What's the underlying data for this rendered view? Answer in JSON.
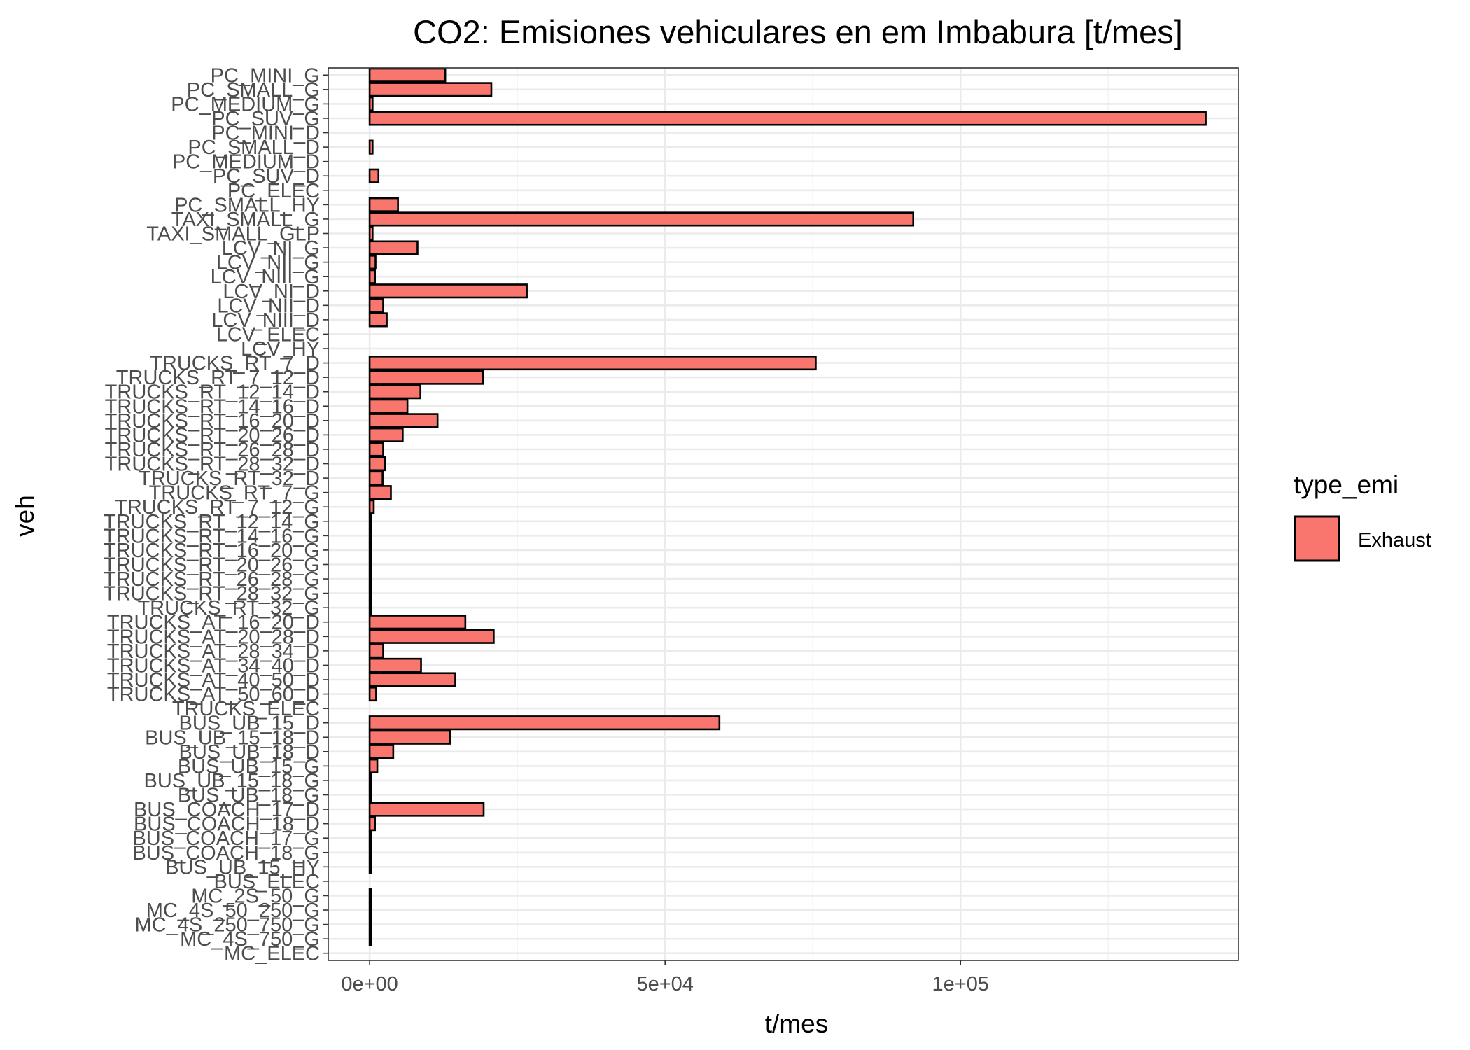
{
  "colors": {
    "bar_fill": "#F8766D",
    "bar_stroke": "#000000",
    "grid_major": "#EBEBEB",
    "grid_minor": "#F3F3F3",
    "panel_border": "#333333",
    "tick_text": "#4D4D4D"
  },
  "legend": {
    "title": "type_emi",
    "items": [
      {
        "label": "Exhaust",
        "color": "#F8766D"
      }
    ]
  },
  "chart_data": {
    "type": "bar",
    "orientation": "horizontal",
    "title": "CO2: Emisiones vehiculares en  em Imbabura [t/mes]",
    "xlabel": "t/mes",
    "ylabel": "veh",
    "xlim": [
      -7000,
      147000
    ],
    "xticks": [
      0,
      50000,
      100000
    ],
    "xtick_labels": [
      "0e+00",
      "5e+04",
      "1e+05"
    ],
    "grid": true,
    "legend_position": "right",
    "categories": [
      "PC_MINI_G",
      "PC_SMALL_G",
      "PC_MEDIUM_G",
      "PC_SUV_G",
      "PC_MINI_D",
      "PC_SMALL_D",
      "PC_MEDIUM_D",
      "PC_SUV_D",
      "PC_ELEC",
      "PC_SMALL_HY",
      "TAXI_SMALL_G",
      "TAXI_SMALL_GLP",
      "LCV_NI_G",
      "LCV_NII_G",
      "LCV_NIII_G",
      "LCV_NI_D",
      "LCV_NII_D",
      "LCV_NIII_D",
      "LCV_ELEC",
      "LCV_HY",
      "TRUCKS_RT_7_D",
      "TRUCKS_RT_7_12_D",
      "TRUCKS_RT_12_14_D",
      "TRUCKS_RT_14_16_D",
      "TRUCKS_RT_16_20_D",
      "TRUCKS_RT_20_26_D",
      "TRUCKS_RT_26_28_D",
      "TRUCKS_RT_28_32_D",
      "TRUCKS_RT_32_D",
      "TRUCKS_RT_7_G",
      "TRUCKS_RT_7_12_G",
      "TRUCKS_RT_12_14_G",
      "TRUCKS_RT_14_16_G",
      "TRUCKS_RT_16_20_G",
      "TRUCKS_RT_20_26_G",
      "TRUCKS_RT_26_28_G",
      "TRUCKS_RT_28_32_G",
      "TRUCKS_RT_32_G",
      "TRUCKS_AT_16_20_D",
      "TRUCKS_AT_20_28_D",
      "TRUCKS_AT_28_34_D",
      "TRUCKS_AT_34_40_D",
      "TRUCKS_AT_40_50_D",
      "TRUCKS_AT_50_60_D",
      "TRUCKS_ELEC",
      "BUS_UB_15_D",
      "BUS_UB_15_18_D",
      "BUS_UB_18_D",
      "BUS_UB_15_G",
      "BUS_UB_15_18_G",
      "BUS_UB_18_G",
      "BUS_COACH_17_D",
      "BUS_COACH_18_D",
      "BUS_COACH_17_G",
      "BUS_COACH_18_G",
      "BUS_UB_15_HY",
      "BUS_ELEC",
      "MC_2S_50_G",
      "MC_4S_50_250_G",
      "MC_4S_250_750_G",
      "MC_4S_750_G",
      "MC_ELEC"
    ],
    "series": [
      {
        "name": "Exhaust",
        "values": [
          12800,
          20600,
          500,
          141500,
          0,
          500,
          0,
          1500,
          0,
          4800,
          92000,
          500,
          8100,
          1000,
          900,
          26600,
          2300,
          2900,
          0,
          0,
          75500,
          19200,
          8600,
          6400,
          11500,
          5600,
          2300,
          2600,
          2200,
          3600,
          700,
          200,
          200,
          200,
          200,
          200,
          200,
          200,
          16200,
          21000,
          2300,
          8700,
          14500,
          1100,
          0,
          59200,
          13600,
          4000,
          1300,
          300,
          200,
          19300,
          900,
          200,
          200,
          200,
          0,
          250,
          200,
          200,
          200,
          0
        ]
      }
    ]
  }
}
